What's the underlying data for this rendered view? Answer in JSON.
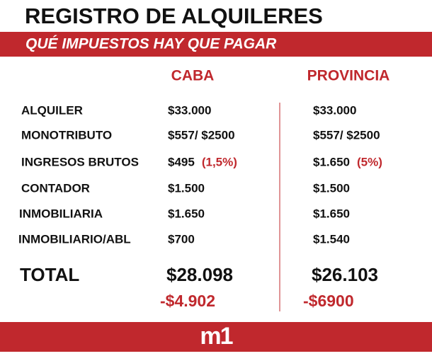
{
  "header": {
    "title": "REGISTRO DE ALQUILERES",
    "subtitle": "QUÉ IMPUESTOS HAY QUE PAGAR"
  },
  "columns": [
    "CABA",
    "PROVINCIA"
  ],
  "rows": [
    {
      "label": "ALQUILER",
      "caba": "$33.000",
      "provincia": "$33.000"
    },
    {
      "label": "MONOTRIBUTO",
      "caba": "$557/ $2500",
      "provincia": "$557/ $2500"
    },
    {
      "label": "INGRESOS BRUTOS",
      "caba": "$495",
      "caba_note": "(1,5%)",
      "provincia": "$1.650",
      "provincia_note": "(5%)"
    },
    {
      "label": "CONTADOR",
      "caba": "$1.500",
      "provincia": "$1.500"
    },
    {
      "label": "INMOBILIARIA",
      "caba": "$1.650",
      "provincia": "$1.650"
    },
    {
      "label": "INMOBILIARIO/ABL",
      "caba": "$700",
      "provincia": "$1.540"
    }
  ],
  "total": {
    "label": "TOTAL",
    "caba": "$28.098",
    "provincia": "$26.103",
    "caba_diff": "-$4.902",
    "provincia_diff": "-$6900"
  },
  "footer": {
    "logo": "m1"
  }
}
